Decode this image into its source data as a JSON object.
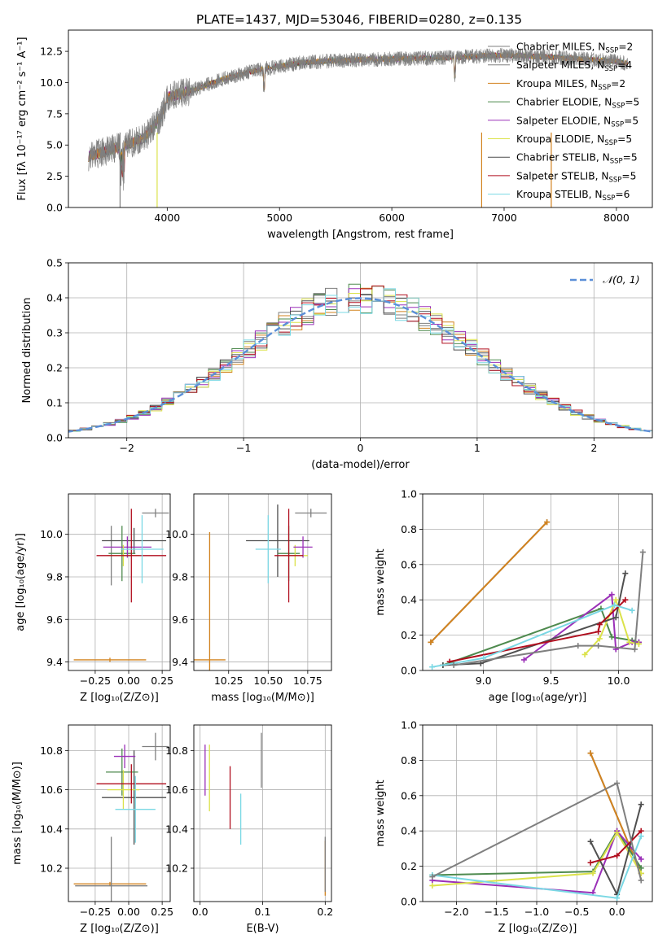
{
  "figure": {
    "title": "PLATE=1437, MJD=53046, FIBERID=0280, z=0.135"
  },
  "models": [
    {
      "name": "Chabrier MILES",
      "n": "2",
      "color": "#7f7f7f"
    },
    {
      "name": "Salpeter MILES",
      "n": "4",
      "color": "#7f7f7f"
    },
    {
      "name": "Kroupa MILES",
      "n": "2",
      "color": "#d2831f"
    },
    {
      "name": "Chabrier ELODIE",
      "n": "5",
      "color": "#4e8a4e"
    },
    {
      "name": "Salpeter ELODIE",
      "n": "5",
      "color": "#9b30b8"
    },
    {
      "name": "Kroupa ELODIE",
      "n": "5",
      "color": "#dbe24a"
    },
    {
      "name": "Chabrier STELIB",
      "n": "5",
      "color": "#4f4f4f"
    },
    {
      "name": "Salpeter STELIB",
      "n": "5",
      "color": "#b00e1e"
    },
    {
      "name": "Kroupa STELIB",
      "n": "6",
      "color": "#7ad8e4"
    }
  ],
  "nssp_label": "N",
  "nssp_sub": "SSP",
  "chart_data": [
    {
      "id": "spectrum",
      "type": "line",
      "title": "PLATE=1437, MJD=53046, FIBERID=0280, z=0.135",
      "xlabel": "wavelength [Angstrom, rest frame]",
      "ylabel": "Flux [fλ 10⁻¹⁷ erg cm⁻² s⁻¹ A⁻¹]",
      "xlim": [
        3120,
        8320
      ],
      "ylim": [
        0,
        14.2
      ],
      "xticks": [
        "4000",
        "5000",
        "6000",
        "7000",
        "8000"
      ],
      "yticks": [
        "0.0",
        "2.5",
        "5.0",
        "7.5",
        "10.0",
        "12.5"
      ],
      "continuum": [
        [
          3300,
          4.1
        ],
        [
          3600,
          4.9
        ],
        [
          3800,
          5.6
        ],
        [
          3950,
          7.3
        ],
        [
          4000,
          8.8
        ],
        [
          4200,
          9.3
        ],
        [
          4500,
          10.3
        ],
        [
          4800,
          11.0
        ],
        [
          5200,
          11.6
        ],
        [
          5600,
          11.8
        ],
        [
          6000,
          11.9
        ],
        [
          6500,
          12.0
        ],
        [
          7000,
          12.2
        ],
        [
          7500,
          12.0
        ],
        [
          8000,
          11.7
        ],
        [
          8100,
          11.5
        ]
      ],
      "dropouts": [
        3580,
        3910,
        6800,
        7420
      ],
      "legend_placement": "top-right"
    },
    {
      "id": "residuals",
      "type": "histogram",
      "xlabel": "(data-model)/error",
      "ylabel": "Normed distribution",
      "xlim": [
        -2.5,
        2.5
      ],
      "ylim": [
        0,
        0.5
      ],
      "xticks": [
        "−2",
        "−1",
        "0",
        "1",
        "2"
      ],
      "yticks": [
        "0.0",
        "0.1",
        "0.2",
        "0.3",
        "0.4",
        "0.5"
      ],
      "bin_width": 0.1,
      "reference_curve": "N(0,1)",
      "reference_color": "#5b8fd8",
      "grid": true,
      "legend_placement": "top-right"
    },
    {
      "id": "age_vs_Z",
      "type": "errorbar",
      "xlabel": "Z [log₁₀(Z/Z⊙)]",
      "ylabel": "age [log₁₀(age/yr)]",
      "xlim": [
        -0.45,
        0.31
      ],
      "ylim": [
        9.36,
        10.19
      ],
      "xticks": [
        "−0.25",
        "0.00",
        "0.25"
      ],
      "yticks": [
        "9.4",
        "9.6",
        "9.8",
        "10.0"
      ],
      "points": [
        {
          "model": 2,
          "x": -0.14,
          "xerr": 0.27,
          "y": 9.41,
          "yerr": 0.01
        },
        {
          "model": 0,
          "x": -0.13,
          "xerr": 0.0,
          "y": 9.9,
          "yerr": 0.14
        },
        {
          "model": 6,
          "x": 0.04,
          "xerr": 0.24,
          "y": 9.97,
          "yerr": 0.06
        },
        {
          "model": 3,
          "x": -0.05,
          "xerr": 0.1,
          "y": 9.91,
          "yerr": 0.13
        },
        {
          "model": 4,
          "x": -0.01,
          "xerr": 0.18,
          "y": 9.94,
          "yerr": 0.05
        },
        {
          "model": 5,
          "x": -0.04,
          "xerr": 0.12,
          "y": 9.9,
          "yerr": 0.05
        },
        {
          "model": 7,
          "x": 0.02,
          "xerr": 0.26,
          "y": 9.9,
          "yerr": 0.22
        },
        {
          "model": 8,
          "x": 0.1,
          "xerr": 0.16,
          "y": 9.93,
          "yerr": 0.16
        },
        {
          "model": 1,
          "x": 0.2,
          "xerr": 0.1,
          "y": 10.1,
          "yerr": 0.02
        }
      ]
    },
    {
      "id": "age_vs_mass",
      "type": "errorbar",
      "xlabel": "mass [log₁₀(M/M⊙)]",
      "xlim": [
        10.03,
        10.9
      ],
      "ylim": [
        9.36,
        10.19
      ],
      "xticks": [
        "10.25",
        "10.50",
        "10.75"
      ],
      "yticks": [
        "9.4",
        "9.6",
        "9.8",
        "10.0"
      ],
      "points": [
        {
          "model": 2,
          "x": 10.13,
          "xerr": 0.1,
          "y": 9.41,
          "yerr": 0.6
        },
        {
          "model": 6,
          "x": 10.56,
          "xerr": 0.2,
          "y": 9.97,
          "yerr": 0.17
        },
        {
          "model": 8,
          "x": 10.5,
          "xerr": 0.08,
          "y": 9.93,
          "yerr": 0.16
        },
        {
          "model": 3,
          "x": 10.63,
          "xerr": 0.07,
          "y": 9.91,
          "yerr": 0.13
        },
        {
          "model": 5,
          "x": 10.67,
          "xerr": 0.08,
          "y": 9.9,
          "yerr": 0.05
        },
        {
          "model": 4,
          "x": 10.72,
          "xerr": 0.06,
          "y": 9.94,
          "yerr": 0.05
        },
        {
          "model": 7,
          "x": 10.63,
          "xerr": 0.09,
          "y": 9.9,
          "yerr": 0.22
        },
        {
          "model": 1,
          "x": 10.77,
          "xerr": 0.1,
          "y": 10.1,
          "yerr": 0.02
        }
      ]
    },
    {
      "id": "weight_vs_age",
      "type": "line",
      "xlabel": "age [log₁₀(age/yr)]",
      "ylabel": "mass weight",
      "xlim": [
        8.55,
        10.25
      ],
      "ylim": [
        0,
        1.0
      ],
      "xticks": [
        "9.0",
        "9.5",
        "10.0"
      ],
      "yticks": [
        "0.0",
        "0.2",
        "0.4",
        "0.6",
        "0.8",
        "1.0"
      ],
      "series": [
        {
          "model": 0,
          "points": [
            [
              8.61,
              0.16
            ],
            [
              9.47,
              0.84
            ]
          ]
        },
        {
          "model": 2,
          "points": [
            [
              8.61,
              0.16
            ],
            [
              9.47,
              0.84
            ]
          ]
        },
        {
          "model": 3,
          "points": [
            [
              8.7,
              0.03
            ],
            [
              9.87,
              0.35
            ],
            [
              9.95,
              0.19
            ],
            [
              10.1,
              0.17
            ],
            [
              10.15,
              0.16
            ]
          ]
        },
        {
          "model": 4,
          "points": [
            [
              9.3,
              0.06
            ],
            [
              9.95,
              0.43
            ],
            [
              9.98,
              0.12
            ],
            [
              10.1,
              0.16
            ],
            [
              10.15,
              0.16
            ]
          ]
        },
        {
          "model": 5,
          "points": [
            [
              9.75,
              0.09
            ],
            [
              9.86,
              0.18
            ],
            [
              9.98,
              0.4
            ],
            [
              10.08,
              0.16
            ],
            [
              10.15,
              0.15
            ]
          ]
        },
        {
          "model": 6,
          "points": [
            [
              8.7,
              0.03
            ],
            [
              8.98,
              0.04
            ],
            [
              9.98,
              0.3
            ],
            [
              10.05,
              0.55
            ]
          ]
        },
        {
          "model": 7,
          "points": [
            [
              8.75,
              0.05
            ],
            [
              9.85,
              0.22
            ],
            [
              9.86,
              0.26
            ],
            [
              10.05,
              0.4
            ]
          ]
        },
        {
          "model": 8,
          "points": [
            [
              8.62,
              0.02
            ],
            [
              9.0,
              0.07
            ],
            [
              9.97,
              0.37
            ],
            [
              10.1,
              0.34
            ]
          ]
        },
        {
          "model": 1,
          "points": [
            [
              8.78,
              0.03
            ],
            [
              9.7,
              0.14
            ],
            [
              9.85,
              0.14
            ],
            [
              10.12,
              0.12
            ],
            [
              10.18,
              0.67
            ]
          ]
        }
      ]
    },
    {
      "id": "mass_vs_Z",
      "type": "errorbar",
      "xlabel": "Z [log₁₀(Z/Z⊙)]",
      "ylabel": "mass [log₁₀(M/M⊙)]",
      "xlim": [
        -0.45,
        0.31
      ],
      "ylim": [
        10.03,
        10.93
      ],
      "xticks": [
        "−0.25",
        "0.00",
        "0.25"
      ],
      "yticks": [
        "10.2",
        "10.4",
        "10.6",
        "10.8"
      ],
      "points": [
        {
          "model": 2,
          "x": -0.14,
          "xerr": 0.27,
          "y": 10.12,
          "yerr": 0.01
        },
        {
          "model": 0,
          "x": -0.13,
          "xerr": 0.27,
          "y": 10.11,
          "yerr": 0.25
        },
        {
          "model": 6,
          "x": 0.04,
          "xerr": 0.24,
          "y": 10.56,
          "yerr": 0.24
        },
        {
          "model": 3,
          "x": -0.05,
          "xerr": 0.12,
          "y": 10.69,
          "yerr": 0.12
        },
        {
          "model": 4,
          "x": -0.03,
          "xerr": 0.08,
          "y": 10.77,
          "yerr": 0.06
        },
        {
          "model": 5,
          "x": -0.04,
          "xerr": 0.12,
          "y": 10.6,
          "yerr": 0.1
        },
        {
          "model": 7,
          "x": 0.02,
          "xerr": 0.26,
          "y": 10.63,
          "yerr": 0.1
        },
        {
          "model": 8,
          "x": 0.05,
          "xerr": 0.15,
          "y": 10.5,
          "yerr": 0.17
        },
        {
          "model": 1,
          "x": 0.2,
          "xerr": 0.1,
          "y": 10.82,
          "yerr": 0.07
        }
      ]
    },
    {
      "id": "mass_vs_ebv",
      "type": "errorbar",
      "xlabel": "E(B-V)",
      "xlim": [
        -0.01,
        0.21
      ],
      "ylim": [
        10.03,
        10.93
      ],
      "xticks": [
        "0.0",
        "0.1",
        "0.2"
      ],
      "yticks": [
        "10.2",
        "10.4",
        "10.6",
        "10.8"
      ],
      "points": [
        {
          "model": 4,
          "x": 0.008,
          "xerr": 0.0,
          "y": 10.7,
          "yerr": 0.13
        },
        {
          "model": 5,
          "x": 0.015,
          "xerr": 0.0,
          "y": 10.66,
          "yerr": 0.17
        },
        {
          "model": 7,
          "x": 0.048,
          "xerr": 0.0,
          "y": 10.56,
          "yerr": 0.16
        },
        {
          "model": 8,
          "x": 0.065,
          "xerr": 0.0,
          "y": 10.45,
          "yerr": 0.13
        },
        {
          "model": 1,
          "x": 0.098,
          "xerr": 0.0,
          "y": 10.75,
          "yerr": 0.14
        },
        {
          "model": 2,
          "x": 0.2,
          "xerr": 0.0,
          "y": 10.2,
          "yerr": 0.14
        },
        {
          "model": 0,
          "x": 0.2,
          "xerr": 0.0,
          "y": 10.22,
          "yerr": 0.14
        }
      ]
    },
    {
      "id": "weight_vs_Z",
      "type": "line",
      "xlabel": "Z [log₁₀(Z/Z⊙)]",
      "ylabel": "mass weight",
      "xlim": [
        -2.42,
        0.44
      ],
      "ylim": [
        0,
        1.0
      ],
      "xticks": [
        "−2.0",
        "−1.5",
        "−1.0",
        "−0.5",
        "0.0"
      ],
      "yticks": [
        "0.0",
        "0.2",
        "0.4",
        "0.6",
        "0.8",
        "1.0"
      ],
      "series": [
        {
          "model": 0,
          "points": [
            [
              -0.33,
              0.84
            ],
            [
              0.3,
              0.16
            ]
          ]
        },
        {
          "model": 2,
          "points": [
            [
              -0.33,
              0.84
            ],
            [
              0.3,
              0.16
            ]
          ]
        },
        {
          "model": 3,
          "points": [
            [
              -2.3,
              0.15
            ],
            [
              -0.3,
              0.17
            ],
            [
              0.0,
              0.4
            ],
            [
              0.3,
              0.19
            ]
          ]
        },
        {
          "model": 4,
          "points": [
            [
              -2.3,
              0.12
            ],
            [
              -0.3,
              0.05
            ],
            [
              0.0,
              0.4
            ],
            [
              0.3,
              0.24
            ]
          ]
        },
        {
          "model": 5,
          "points": [
            [
              -2.3,
              0.09
            ],
            [
              -0.3,
              0.16
            ],
            [
              0.0,
              0.39
            ],
            [
              0.3,
              0.16
            ]
          ]
        },
        {
          "model": 6,
          "points": [
            [
              -0.33,
              0.34
            ],
            [
              0.0,
              0.04
            ],
            [
              0.3,
              0.55
            ]
          ]
        },
        {
          "model": 7,
          "points": [
            [
              -0.33,
              0.22
            ],
            [
              0.0,
              0.26
            ],
            [
              0.3,
              0.4
            ]
          ]
        },
        {
          "model": 8,
          "points": [
            [
              -2.3,
              0.15
            ],
            [
              0.0,
              0.02
            ],
            [
              0.3,
              0.37
            ]
          ]
        },
        {
          "model": 1,
          "points": [
            [
              -2.3,
              0.14
            ],
            [
              0.0,
              0.67
            ],
            [
              0.3,
              0.12
            ]
          ]
        }
      ]
    }
  ]
}
